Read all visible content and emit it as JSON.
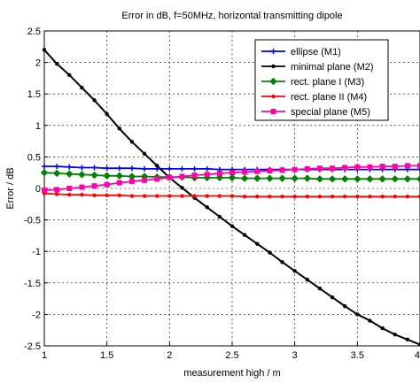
{
  "chart_data": {
    "type": "line",
    "title": "Error in dB, f=50MHz, horizontal transmitting dipole",
    "xlabel": "measurement high / m",
    "ylabel": "Error / dB",
    "xlim": [
      1,
      4
    ],
    "ylim": [
      -2.5,
      2.5
    ],
    "xticks": [
      1,
      1.5,
      2,
      2.5,
      3,
      3.5,
      4
    ],
    "yticks": [
      -2.5,
      -2,
      -1.5,
      -1,
      -0.5,
      0,
      0.5,
      1,
      1.5,
      2,
      2.5
    ],
    "xtick_labels": [
      "1",
      "1.5",
      "2",
      "2.5",
      "3",
      "3.5",
      "4"
    ],
    "ytick_labels": [
      "-2.5",
      "-2",
      "-1.5",
      "-1",
      "-0.5",
      "0",
      "0.5",
      "1",
      "1.5",
      "2",
      "2.5"
    ],
    "grid": true,
    "legend_position": "top-right",
    "x": [
      1.0,
      1.1,
      1.2,
      1.3,
      1.4,
      1.5,
      1.6,
      1.7,
      1.8,
      1.9,
      2.0,
      2.1,
      2.2,
      2.3,
      2.4,
      2.5,
      2.6,
      2.7,
      2.8,
      2.9,
      3.0,
      3.1,
      3.2,
      3.3,
      3.4,
      3.5,
      3.6,
      3.7,
      3.8,
      3.9,
      4.0
    ],
    "series": [
      {
        "name": "ellipse (M1)",
        "color": "#0000ff",
        "marker": "plus",
        "values": [
          0.35,
          0.35,
          0.34,
          0.33,
          0.33,
          0.32,
          0.32,
          0.32,
          0.31,
          0.31,
          0.31,
          0.31,
          0.31,
          0.31,
          0.3,
          0.3,
          0.3,
          0.3,
          0.3,
          0.3,
          0.3,
          0.3,
          0.3,
          0.3,
          0.3,
          0.3,
          0.3,
          0.3,
          0.3,
          0.3,
          0.3
        ]
      },
      {
        "name": "minimal plane (M2)",
        "color": "#000000",
        "marker": "dot",
        "values": [
          2.2,
          1.98,
          1.8,
          1.6,
          1.4,
          1.18,
          0.95,
          0.74,
          0.55,
          0.36,
          0.17,
          0.01,
          -0.15,
          -0.3,
          -0.45,
          -0.6,
          -0.74,
          -0.88,
          -1.02,
          -1.17,
          -1.31,
          -1.45,
          -1.59,
          -1.73,
          -1.87,
          -2.0,
          -2.1,
          -2.22,
          -2.32,
          -2.4,
          -2.48
        ]
      },
      {
        "name": "rect. plane I (M3)",
        "color": "#008000",
        "marker": "diamond",
        "values": [
          0.25,
          0.24,
          0.23,
          0.22,
          0.21,
          0.2,
          0.2,
          0.19,
          0.19,
          0.18,
          0.18,
          0.18,
          0.17,
          0.17,
          0.17,
          0.17,
          0.16,
          0.16,
          0.16,
          0.16,
          0.16,
          0.16,
          0.15,
          0.15,
          0.15,
          0.15,
          0.15,
          0.15,
          0.15,
          0.15,
          0.15
        ]
      },
      {
        "name": "rect. plane II (M4)",
        "color": "#ff0000",
        "marker": "dot",
        "values": [
          -0.08,
          -0.09,
          -0.1,
          -0.1,
          -0.11,
          -0.11,
          -0.11,
          -0.12,
          -0.12,
          -0.12,
          -0.12,
          -0.12,
          -0.12,
          -0.12,
          -0.12,
          -0.12,
          -0.13,
          -0.13,
          -0.13,
          -0.13,
          -0.13,
          -0.13,
          -0.13,
          -0.13,
          -0.13,
          -0.13,
          -0.13,
          -0.13,
          -0.13,
          -0.13,
          -0.13
        ]
      },
      {
        "name": "special plane (M5)",
        "color": "#ff00aa",
        "marker": "square",
        "values": [
          -0.03,
          -0.02,
          0.0,
          0.02,
          0.04,
          0.06,
          0.09,
          0.11,
          0.13,
          0.15,
          0.17,
          0.19,
          0.21,
          0.22,
          0.24,
          0.25,
          0.26,
          0.27,
          0.28,
          0.29,
          0.3,
          0.31,
          0.32,
          0.32,
          0.33,
          0.34,
          0.34,
          0.35,
          0.35,
          0.36,
          0.36
        ]
      }
    ]
  }
}
